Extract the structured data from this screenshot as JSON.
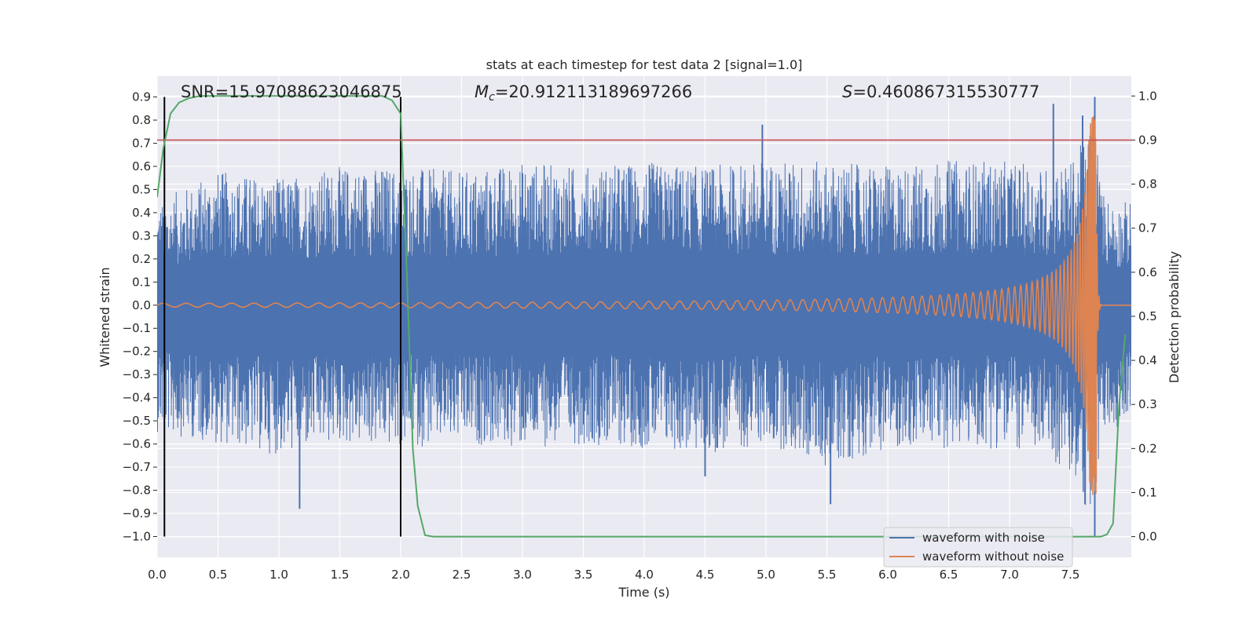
{
  "chart_data": {
    "type": "line",
    "title": "stats at each timestep for test data 2 [signal=1.0]",
    "xlabel": "Time (s)",
    "ylabel": "Whitened strain",
    "y2label": "Detection probability",
    "xlim": [
      0.0,
      8.0
    ],
    "ylim": [
      -1.09,
      0.99
    ],
    "y2lim": [
      -0.047,
      1.045
    ],
    "x_ticks": [
      0.0,
      0.5,
      1.0,
      1.5,
      2.0,
      2.5,
      3.0,
      3.5,
      4.0,
      4.5,
      5.0,
      5.5,
      6.0,
      6.5,
      7.0,
      7.5
    ],
    "x_tick_labels": [
      "0.0",
      "0.5",
      "1.0",
      "1.5",
      "2.0",
      "2.5",
      "3.0",
      "3.5",
      "4.0",
      "4.5",
      "5.0",
      "5.5",
      "6.0",
      "6.5",
      "7.0",
      "7.5"
    ],
    "y_ticks": [
      0.9,
      0.8,
      0.7,
      0.6,
      0.5,
      0.4,
      0.3,
      0.2,
      0.1,
      0.0,
      -0.1,
      -0.2,
      -0.3,
      -0.4,
      -0.5,
      -0.6,
      -0.7,
      -0.8,
      -0.9,
      -1.0
    ],
    "y_tick_labels": [
      "0.9",
      "0.8",
      "0.7",
      "0.6",
      "0.5",
      "0.4",
      "0.3",
      "0.2",
      "0.1",
      "0.0",
      "−0.1",
      "−0.2",
      "−0.3",
      "−0.4",
      "−0.5",
      "−0.6",
      "−0.7",
      "−0.8",
      "−0.9",
      "−1.0"
    ],
    "y2_ticks": [
      1.0,
      0.9,
      0.8,
      0.7,
      0.6,
      0.5,
      0.4,
      0.3,
      0.2,
      0.1,
      0.0
    ],
    "y2_tick_labels": [
      "1.0",
      "0.9",
      "0.8",
      "0.7",
      "0.6",
      "0.5",
      "0.4",
      "0.3",
      "0.2",
      "0.1",
      "0.0"
    ],
    "annotations": {
      "snr": "SNR=15.97088623046875",
      "mc_symbol": "M",
      "mc_sub": "c",
      "mc_value": "=20.912113189697266",
      "s_symbol": "S",
      "s_value": "=0.460867315530777"
    },
    "threshold": {
      "value": 0.9,
      "axis": "right",
      "color": "#c44e52"
    },
    "vertical_markers": [
      0.06,
      2.0
    ],
    "series": [
      {
        "name": "waveform with noise",
        "axis": "left",
        "color": "#4c72b0",
        "envelope": {
          "t": [
            0,
            0.5,
            1.0,
            1.5,
            2.0,
            2.5,
            3.0,
            3.5,
            4.0,
            4.5,
            5.0,
            5.5,
            6.0,
            6.5,
            7.0,
            7.3,
            7.5,
            7.65,
            7.7,
            7.75,
            7.85,
            8.0
          ],
          "upper": [
            0.45,
            0.58,
            0.55,
            0.6,
            0.6,
            0.58,
            0.62,
            0.6,
            0.62,
            0.6,
            0.63,
            0.62,
            0.6,
            0.63,
            0.62,
            0.6,
            0.62,
            0.75,
            0.9,
            0.5,
            0.45,
            0.45
          ],
          "lower": [
            -0.55,
            -0.6,
            -0.65,
            -0.6,
            -0.62,
            -0.6,
            -0.62,
            -0.6,
            -0.62,
            -0.65,
            -0.6,
            -0.7,
            -0.62,
            -0.62,
            -0.62,
            -0.65,
            -0.75,
            -0.9,
            -1.0,
            -0.55,
            -0.55,
            -0.45
          ]
        },
        "spikes": [
          {
            "t": 1.17,
            "v": -0.88
          },
          {
            "t": 4.5,
            "v": -0.74
          },
          {
            "t": 4.97,
            "v": 0.78
          },
          {
            "t": 5.53,
            "v": -0.86
          },
          {
            "t": 7.36,
            "v": 0.87
          },
          {
            "t": 7.6,
            "v": 0.82
          },
          {
            "t": 7.62,
            "v": -0.86
          },
          {
            "t": 7.7,
            "v": 0.9
          },
          {
            "t": 7.7,
            "v": -1.0
          }
        ]
      },
      {
        "name": "waveform without noise",
        "axis": "left",
        "color": "#dd8452",
        "chirp": {
          "t_merge": 7.71,
          "amplitude_start": 0.008,
          "amplitude_peak": 0.82,
          "amplitude_min_peak": -0.8,
          "ringdown_end": 7.75
        }
      },
      {
        "name": "detection probability",
        "axis": "right",
        "color": "#55a868",
        "x": [
          0.0,
          0.05,
          0.11,
          0.18,
          0.26,
          0.35,
          0.5,
          1.0,
          1.5,
          1.85,
          1.93,
          2.0,
          2.05,
          2.1,
          2.14,
          2.2,
          2.27,
          2.5,
          5.0,
          7.0,
          7.75,
          7.8,
          7.85,
          7.9,
          7.95
        ],
        "y": [
          0.77,
          0.88,
          0.96,
          0.985,
          0.995,
          1.0,
          1.0,
          1.0,
          1.0,
          1.0,
          0.99,
          0.96,
          0.6,
          0.2,
          0.07,
          0.003,
          0.0,
          0.0,
          0.0,
          0.0,
          0.0,
          0.005,
          0.03,
          0.3,
          0.46
        ]
      }
    ],
    "legend": {
      "position": "lower-right",
      "entries": [
        {
          "label": "waveform with noise",
          "color": "#4c72b0"
        },
        {
          "label": "waveform without noise",
          "color": "#dd8452"
        }
      ]
    },
    "grid": true
  }
}
